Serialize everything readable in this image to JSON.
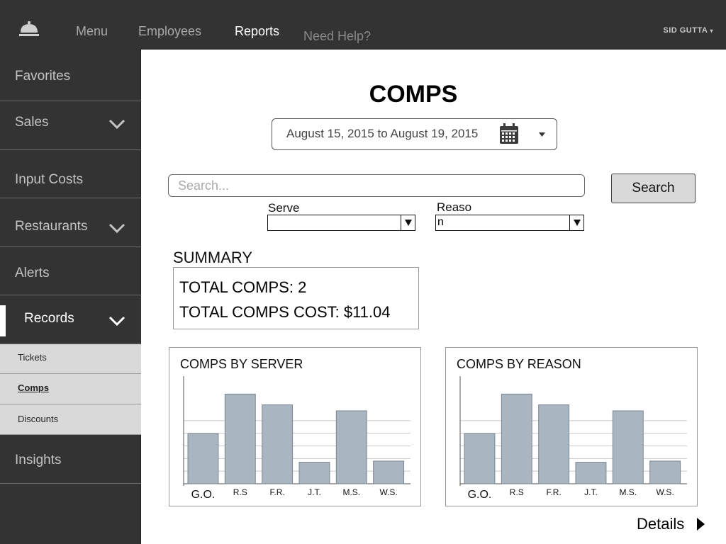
{
  "topbar": {
    "nav": [
      "Menu",
      "Employees",
      "Reports"
    ],
    "help": "Need Help?",
    "user": "SID GUTTA",
    "logo_icon": "service-bell-icon"
  },
  "sidebar": {
    "items": [
      {
        "label": "Favorites"
      },
      {
        "label": "Sales"
      },
      {
        "label": "Input Costs"
      },
      {
        "label": "Restaurants"
      },
      {
        "label": "Alerts"
      },
      {
        "label": "Records"
      },
      {
        "label": "Insights"
      }
    ],
    "sub_items": [
      {
        "label": "Tickets"
      },
      {
        "label": "Comps"
      },
      {
        "label": "Discounts"
      }
    ]
  },
  "main": {
    "title": "COMPS",
    "date_range": "August 15, 2015 to August 19, 2015",
    "search": {
      "placeholder": "Search...",
      "button": "Search"
    },
    "filters": {
      "server_label": "Serve",
      "server_value": "",
      "reason_label": "Reaso",
      "reason_value": "n"
    },
    "summary": {
      "title": "SUMMARY",
      "total_comps": "TOTAL COMPS: 2",
      "total_cost": "TOTAL COMPS COST: $11.04"
    },
    "details_link": "Details"
  },
  "chart_data": [
    {
      "type": "bar",
      "title": "COMPS BY SERVER",
      "categories": [
        "G.O.",
        "R.S",
        "F.R.",
        "J.T.",
        "M.S.",
        "W.S."
      ],
      "values": [
        4.2,
        7.5,
        6.6,
        1.8,
        6.1,
        1.9
      ],
      "ylim": [
        0,
        9
      ],
      "grid": true,
      "bar_color": "#a9b5c0"
    },
    {
      "type": "bar",
      "title": "COMPS BY REASON",
      "categories": [
        "G.O.",
        "R.S",
        "F.R.",
        "J.T.",
        "M.S.",
        "W.S."
      ],
      "values": [
        4.2,
        7.5,
        6.6,
        1.8,
        6.1,
        1.9
      ],
      "ylim": [
        0,
        9
      ],
      "grid": true,
      "bar_color": "#a9b5c0"
    }
  ]
}
